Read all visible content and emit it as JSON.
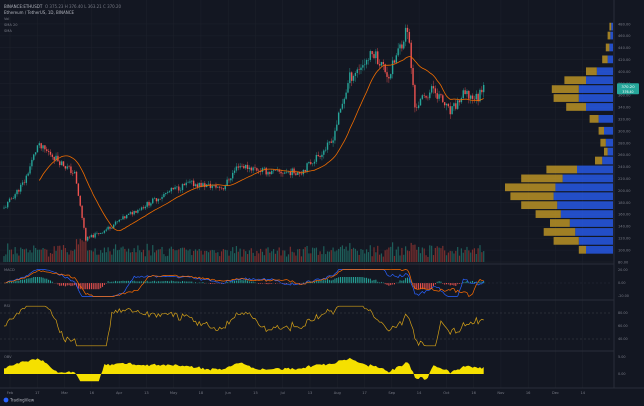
{
  "header": {
    "symbol": "BINANCE:ETHUSDT",
    "title": "Ethereum / TetherUS, 1D, BINANCE",
    "ohlc": "O 375.23 H 376.40 L 363.21 C 370.20",
    "indicator_lines": [
      "Vol",
      "SMA 20",
      "SMA"
    ]
  },
  "colors": {
    "background": "#131722",
    "up": "#26a69a",
    "down": "#ef5350",
    "sma": "#ef6c00",
    "vp_up": "#2962ff",
    "vp_down": "#c49a25",
    "rsi": "#d4a017",
    "osc_fill": "#f5e000",
    "price_badge": "#26a69a"
  },
  "price_axis": {
    "labels": [
      "480.00",
      "460.00",
      "440.00",
      "420.00",
      "400.00",
      "380.00",
      "360.00",
      "340.00",
      "320.00",
      "300.00",
      "280.00",
      "260.00",
      "240.00",
      "220.00",
      "200.00",
      "180.00",
      "160.00",
      "140.00",
      "120.00",
      "100.00",
      "80.00"
    ],
    "last_price": "370.20",
    "last_price_sub": "376.40"
  },
  "macd_axis": {
    "label": "MACD",
    "labels": [
      "20.00",
      "0.00",
      "-20.00"
    ]
  },
  "rsi_axis": {
    "label": "RSI",
    "labels": [
      "80.00",
      "60.00",
      "40.00"
    ]
  },
  "osc_axis": {
    "label": "OBV",
    "labels": [
      "5.00",
      "0.00"
    ]
  },
  "time_axis": {
    "labels": [
      "Feb",
      "17",
      "Mar",
      "16",
      "Apr",
      "13",
      "May",
      "18",
      "Jun",
      "15",
      "Jul",
      "13",
      "Aug",
      "17",
      "Sep",
      "14",
      "Oct",
      "16",
      "Nov",
      "16",
      "Dec",
      "14"
    ]
  },
  "footer": {
    "brand": "TradingView"
  },
  "chart_data": {
    "type": "candlestick",
    "x_range": [
      "2020-01-28",
      "2020-12-20"
    ],
    "ylim": [
      80,
      490
    ],
    "close_path_anchors": [
      {
        "x": "2020-01-28",
        "y": 170
      },
      {
        "x": "2020-02-08",
        "y": 215
      },
      {
        "x": "2020-02-15",
        "y": 275
      },
      {
        "x": "2020-02-22",
        "y": 262
      },
      {
        "x": "2020-03-06",
        "y": 228
      },
      {
        "x": "2020-03-12",
        "y": 118
      },
      {
        "x": "2020-03-22",
        "y": 133
      },
      {
        "x": "2020-04-07",
        "y": 165
      },
      {
        "x": "2020-04-27",
        "y": 200
      },
      {
        "x": "2020-05-07",
        "y": 212
      },
      {
        "x": "2020-05-25",
        "y": 205
      },
      {
        "x": "2020-06-02",
        "y": 243
      },
      {
        "x": "2020-06-20",
        "y": 230
      },
      {
        "x": "2020-07-06",
        "y": 232
      },
      {
        "x": "2020-07-22",
        "y": 280
      },
      {
        "x": "2020-08-01",
        "y": 390
      },
      {
        "x": "2020-08-14",
        "y": 432
      },
      {
        "x": "2020-08-22",
        "y": 392
      },
      {
        "x": "2020-09-01",
        "y": 475
      },
      {
        "x": "2020-09-05",
        "y": 340
      },
      {
        "x": "2020-09-15",
        "y": 372
      },
      {
        "x": "2020-09-24",
        "y": 330
      },
      {
        "x": "2020-10-01",
        "y": 360
      },
      {
        "x": "2020-10-09",
        "y": 356
      },
      {
        "x": "2020-10-12",
        "y": 383
      }
    ],
    "volume_profile": [
      {
        "price": 100,
        "up": 30,
        "down": 8
      },
      {
        "price": 115,
        "up": 38,
        "down": 28
      },
      {
        "price": 130,
        "up": 42,
        "down": 35
      },
      {
        "price": 145,
        "up": 48,
        "down": 22
      },
      {
        "price": 160,
        "up": 58,
        "down": 28
      },
      {
        "price": 175,
        "up": 62,
        "down": 40
      },
      {
        "price": 190,
        "up": 66,
        "down": 48
      },
      {
        "price": 205,
        "up": 64,
        "down": 56
      },
      {
        "price": 220,
        "up": 56,
        "down": 46
      },
      {
        "price": 235,
        "up": 40,
        "down": 34
      },
      {
        "price": 250,
        "up": 12,
        "down": 8
      },
      {
        "price": 265,
        "up": 6,
        "down": 4
      },
      {
        "price": 280,
        "up": 8,
        "down": 6
      },
      {
        "price": 300,
        "up": 10,
        "down": 6
      },
      {
        "price": 320,
        "up": 16,
        "down": 10
      },
      {
        "price": 340,
        "up": 30,
        "down": 22
      },
      {
        "price": 355,
        "up": 38,
        "down": 28
      },
      {
        "price": 370,
        "up": 38,
        "down": 30
      },
      {
        "price": 385,
        "up": 30,
        "down": 24
      },
      {
        "price": 400,
        "up": 18,
        "down": 12
      },
      {
        "price": 420,
        "up": 6,
        "down": 6
      },
      {
        "price": 440,
        "up": 4,
        "down": 4
      },
      {
        "price": 460,
        "up": 3,
        "down": 3
      },
      {
        "price": 475,
        "up": 2,
        "down": 2
      }
    ]
  }
}
